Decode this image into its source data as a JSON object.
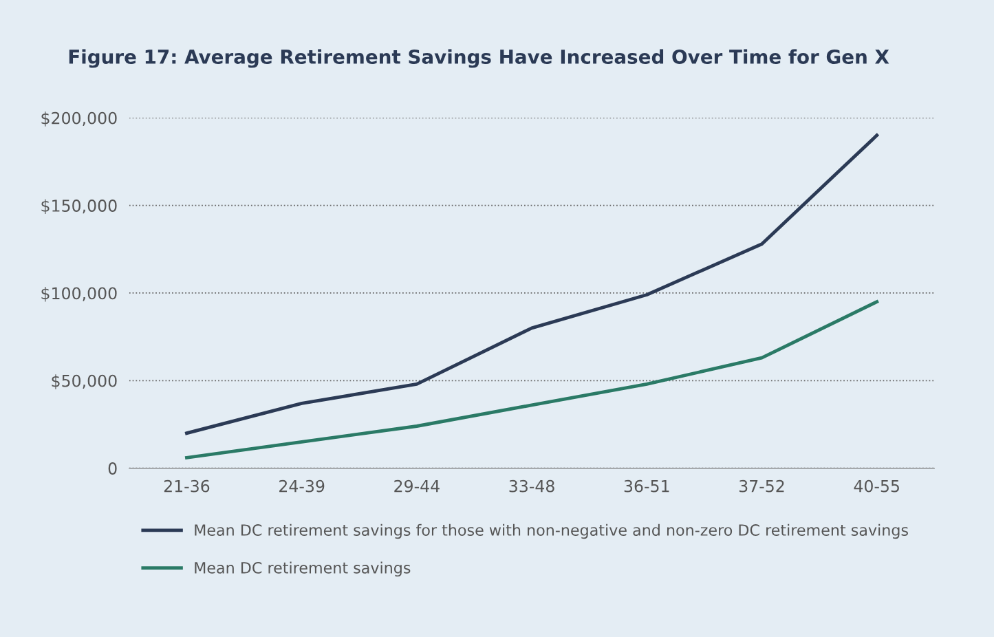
{
  "chart_data": {
    "type": "line",
    "title": "Figure 17: Average Retirement Savings Have Increased Over Time for Gen X",
    "categories": [
      "21-36",
      "24-39",
      "29-44",
      "33-48",
      "36-51",
      "37-52",
      "40-55"
    ],
    "series": [
      {
        "name": "Mean DC retirement savings for those with non-negative and non-zero DC retirement savings",
        "color": "#2b3a55",
        "values": [
          20000,
          37000,
          48000,
          80000,
          99000,
          128000,
          190000
        ]
      },
      {
        "name": "Mean DC retirement savings",
        "color": "#2a7a66",
        "values": [
          6000,
          15000,
          24000,
          36000,
          48000,
          63000,
          95000
        ]
      }
    ],
    "ylim": [
      0,
      200000
    ],
    "yticks": [
      0,
      {
        "value": 50000,
        "label": "$50,000"
      },
      {
        "value": 100000,
        "label": "$100,000"
      },
      {
        "value": 150000,
        "label": "$150,000"
      },
      {
        "value": 200000,
        "label": "$200,000"
      }
    ],
    "grid": "y",
    "legend": "bottom",
    "marker": "none",
    "line_style": "solid"
  }
}
